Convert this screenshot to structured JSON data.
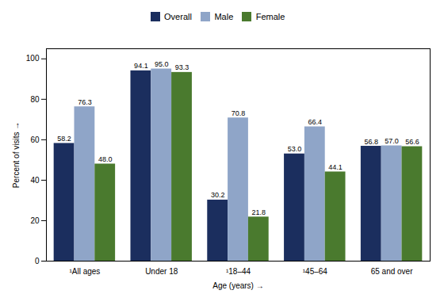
{
  "chart_data": {
    "type": "bar",
    "xlabel": "Age (years)",
    "ylabel": "Percent of visits",
    "categories": [
      "¹All ages",
      "Under 18",
      "¹18–44",
      "¹45–64",
      "65 and over"
    ],
    "series": [
      {
        "name": "Overall",
        "color": "#1b2e5e",
        "values": [
          58.2,
          94.1,
          30.2,
          53.0,
          56.8
        ],
        "value_labels": [
          "58.2",
          "94.1",
          "30.2",
          "53.0",
          "56.8"
        ]
      },
      {
        "name": "Male",
        "color": "#8fa5c8",
        "values": [
          76.3,
          95.0,
          70.8,
          66.4,
          57.0
        ],
        "value_labels": [
          "76.3",
          "95.0",
          "70.8",
          "66.4",
          "57.0"
        ]
      },
      {
        "name": "Female",
        "color": "#4a7a2e",
        "values": [
          48.0,
          93.3,
          21.8,
          44.1,
          56.6
        ],
        "value_labels": [
          "48.0",
          "93.3",
          "21.8",
          "44.1",
          "56.6"
        ]
      }
    ],
    "ylim": [
      0,
      105
    ],
    "yticks": [
      0,
      20,
      40,
      60,
      80,
      100
    ],
    "data_labels": true,
    "legend": "top",
    "grid": false
  }
}
